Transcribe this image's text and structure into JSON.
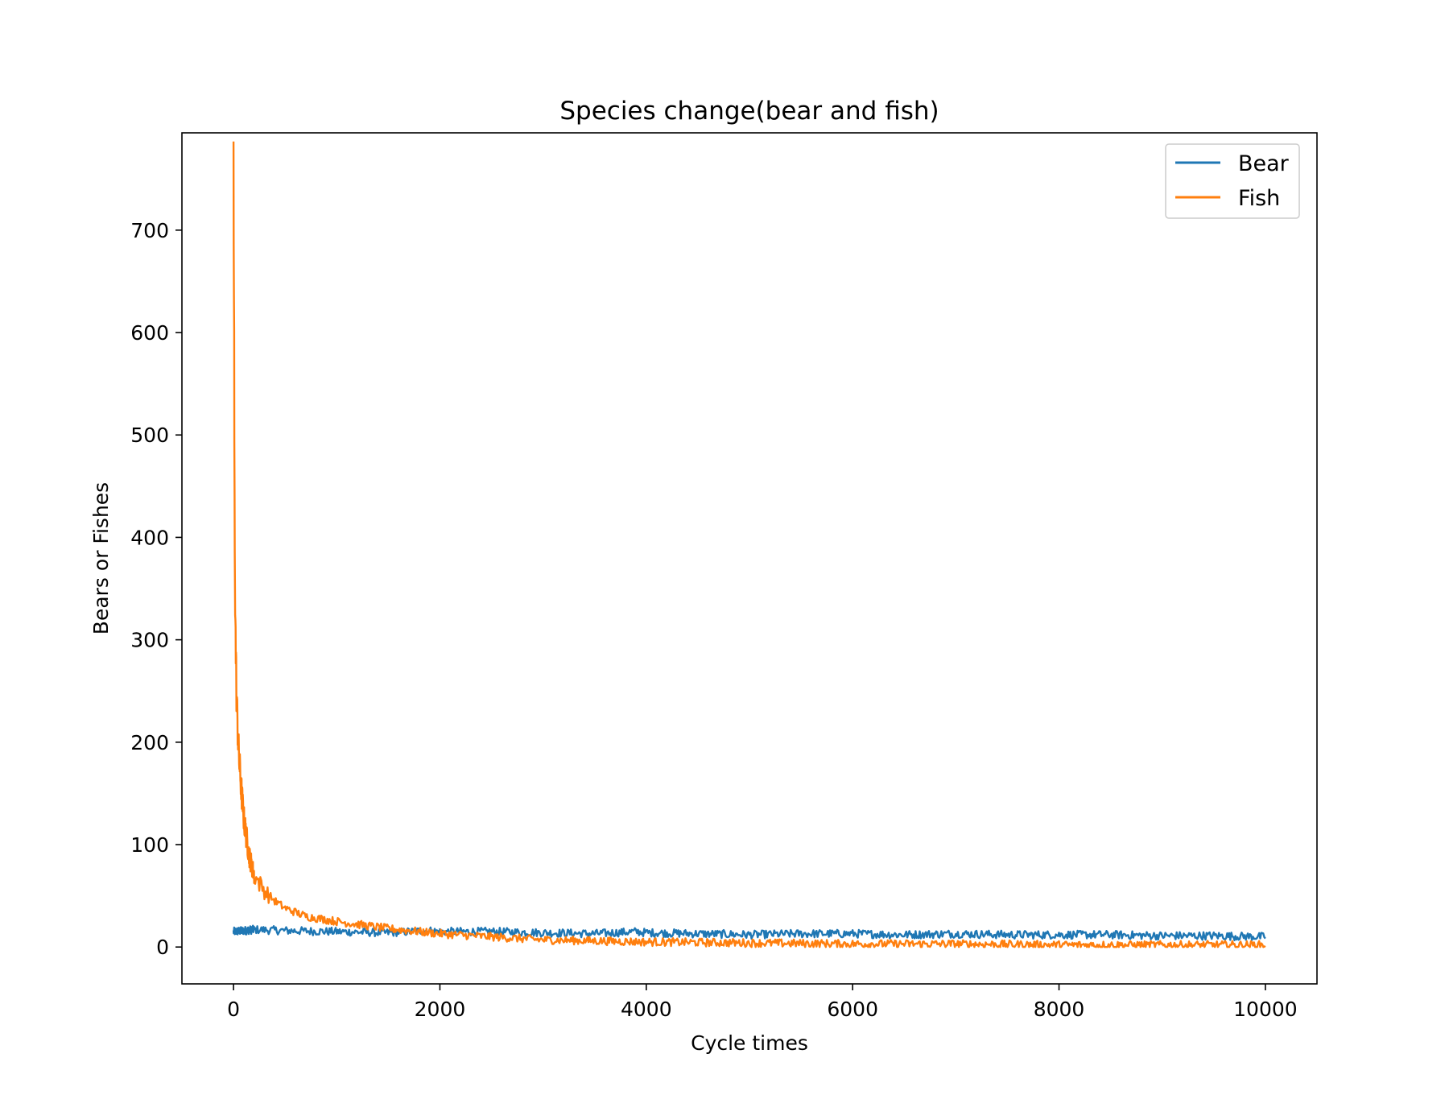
{
  "chart_data": {
    "type": "line",
    "title": "Species change(bear and fish)",
    "xlabel": "Cycle times",
    "ylabel": "Bears or Fishes",
    "xlim": [
      -500,
      10500
    ],
    "ylim": [
      -36,
      795
    ],
    "xticks": [
      0,
      2000,
      4000,
      6000,
      8000,
      10000
    ],
    "yticks": [
      0,
      100,
      200,
      300,
      400,
      500,
      600,
      700
    ],
    "grid": false,
    "legend_position": "top-right",
    "series": [
      {
        "name": "Bear",
        "color": "#1f77b4",
        "x": [
          0,
          100,
          200,
          500,
          1000,
          1500,
          1900,
          2000,
          2500,
          3000,
          3500,
          3900,
          4000,
          4500,
          5000,
          5500,
          6000,
          6500,
          7000,
          7500,
          8000,
          8500,
          9000,
          9500,
          10000
        ],
        "values": [
          15,
          16,
          17,
          16,
          15,
          14,
          16,
          15,
          15,
          14,
          13,
          15,
          14,
          13,
          12,
          13,
          13,
          12,
          13,
          12,
          12,
          12,
          11,
          11,
          10
        ],
        "noise_amplitude": 4
      },
      {
        "name": "Fish",
        "color": "#ff7f0e",
        "x": [
          0,
          5,
          10,
          20,
          30,
          50,
          70,
          100,
          150,
          200,
          300,
          400,
          500,
          700,
          1000,
          1500,
          2000,
          2500,
          3000,
          3500,
          4000,
          5000,
          6000,
          7000,
          8000,
          9000,
          10000
        ],
        "values": [
          755,
          600,
          420,
          300,
          240,
          190,
          160,
          125,
          90,
          70,
          55,
          45,
          38,
          30,
          25,
          18,
          13,
          10,
          7,
          6,
          5,
          4,
          3,
          3,
          2,
          2,
          2
        ],
        "noise_amplitude": 4
      }
    ]
  }
}
